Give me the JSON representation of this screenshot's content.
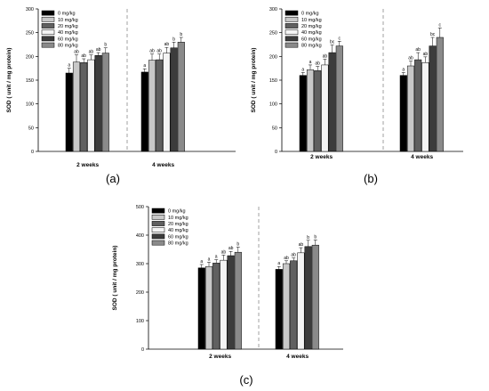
{
  "chart_data": [
    {
      "type": "bar",
      "panel_label": "(a)",
      "categories": [
        "2 weeks",
        "4 weeks"
      ],
      "ylabel": "SOD ( unit / mg protein)",
      "ylim": [
        0,
        300
      ],
      "yticks": [
        0,
        50,
        100,
        150,
        200,
        250,
        300
      ],
      "legend_placement": "top-left",
      "series": [
        {
          "name": "0 mg/kg",
          "color": "#000000",
          "values": [
            165,
            167
          ],
          "errors": [
            10,
            7
          ],
          "letters": [
            "a",
            "a"
          ]
        },
        {
          "name": "10 mg/kg",
          "color": "#c8c8c8",
          "values": [
            188,
            192
          ],
          "errors": [
            15,
            13
          ],
          "letters": [
            "ab",
            "ab"
          ]
        },
        {
          "name": "20 mg/kg",
          "color": "#606060",
          "values": [
            187,
            193
          ],
          "errors": [
            8,
            12
          ],
          "letters": [
            "ab",
            "ab"
          ]
        },
        {
          "name": "40 mg/kg",
          "color": "#f4f4f4",
          "values": [
            193,
            207
          ],
          "errors": [
            10,
            12
          ],
          "letters": [
            "ab",
            "ab"
          ]
        },
        {
          "name": "60 mg/kg",
          "color": "#3c3c3c",
          "values": [
            202,
            218
          ],
          "errors": [
            6,
            12
          ],
          "letters": [
            "ab",
            "b"
          ]
        },
        {
          "name": "80 mg/kg",
          "color": "#8a8a8a",
          "values": [
            207,
            230
          ],
          "errors": [
            11,
            10
          ],
          "letters": [
            "b",
            "b"
          ]
        }
      ]
    },
    {
      "type": "bar",
      "panel_label": "(b)",
      "categories": [
        "2 weeks",
        "4 weeks"
      ],
      "ylabel": "SOD ( unit / mg protein)",
      "ylim": [
        0,
        300
      ],
      "yticks": [
        0,
        50,
        100,
        150,
        200,
        250,
        300
      ],
      "legend_placement": "top-left",
      "series": [
        {
          "name": "0 mg/kg",
          "color": "#000000",
          "values": [
            160,
            160
          ],
          "errors": [
            6,
            6
          ],
          "letters": [
            "a",
            "a"
          ]
        },
        {
          "name": "10 mg/kg",
          "color": "#c8c8c8",
          "values": [
            172,
            180
          ],
          "errors": [
            10,
            10
          ],
          "letters": [
            "a",
            "ab"
          ]
        },
        {
          "name": "20 mg/kg",
          "color": "#606060",
          "values": [
            170,
            193
          ],
          "errors": [
            9,
            15
          ],
          "letters": [
            "ab",
            "ab"
          ]
        },
        {
          "name": "40 mg/kg",
          "color": "#f4f4f4",
          "values": [
            182,
            187
          ],
          "errors": [
            12,
            12
          ],
          "letters": [
            "ab",
            "ab"
          ]
        },
        {
          "name": "60 mg/kg",
          "color": "#3c3c3c",
          "values": [
            208,
            222
          ],
          "errors": [
            16,
            18
          ],
          "letters": [
            "bc",
            "bc"
          ]
        },
        {
          "name": "80 mg/kg",
          "color": "#8a8a8a",
          "values": [
            222,
            240
          ],
          "errors": [
            10,
            20
          ],
          "letters": [
            "c",
            "c"
          ]
        }
      ]
    },
    {
      "type": "bar",
      "panel_label": "(c)",
      "categories": [
        "2 weeks",
        "4 weeks"
      ],
      "ylabel": "SOD ( unit / mg protein)",
      "ylim": [
        0,
        500
      ],
      "yticks": [
        0,
        100,
        200,
        300,
        400,
        500
      ],
      "legend_placement": "top-left",
      "series": [
        {
          "name": "0 mg/kg",
          "color": "#000000",
          "values": [
            285,
            280
          ],
          "errors": [
            12,
            10
          ],
          "letters": [
            "a",
            "a"
          ]
        },
        {
          "name": "10 mg/kg",
          "color": "#c8c8c8",
          "values": [
            290,
            300
          ],
          "errors": [
            15,
            10
          ],
          "letters": [
            "a",
            "ab"
          ]
        },
        {
          "name": "20 mg/kg",
          "color": "#606060",
          "values": [
            302,
            310
          ],
          "errors": [
            12,
            10
          ],
          "letters": [
            "a",
            "ab"
          ]
        },
        {
          "name": "40 mg/kg",
          "color": "#f4f4f4",
          "values": [
            312,
            338
          ],
          "errors": [
            18,
            18
          ],
          "letters": [
            "ab",
            "ab"
          ]
        },
        {
          "name": "60 mg/kg",
          "color": "#3c3c3c",
          "values": [
            328,
            360
          ],
          "errors": [
            15,
            22
          ],
          "letters": [
            "ab",
            "b"
          ]
        },
        {
          "name": "80 mg/kg",
          "color": "#8a8a8a",
          "values": [
            340,
            365
          ],
          "errors": [
            18,
            18
          ],
          "letters": [
            "b",
            "b"
          ]
        }
      ]
    }
  ]
}
